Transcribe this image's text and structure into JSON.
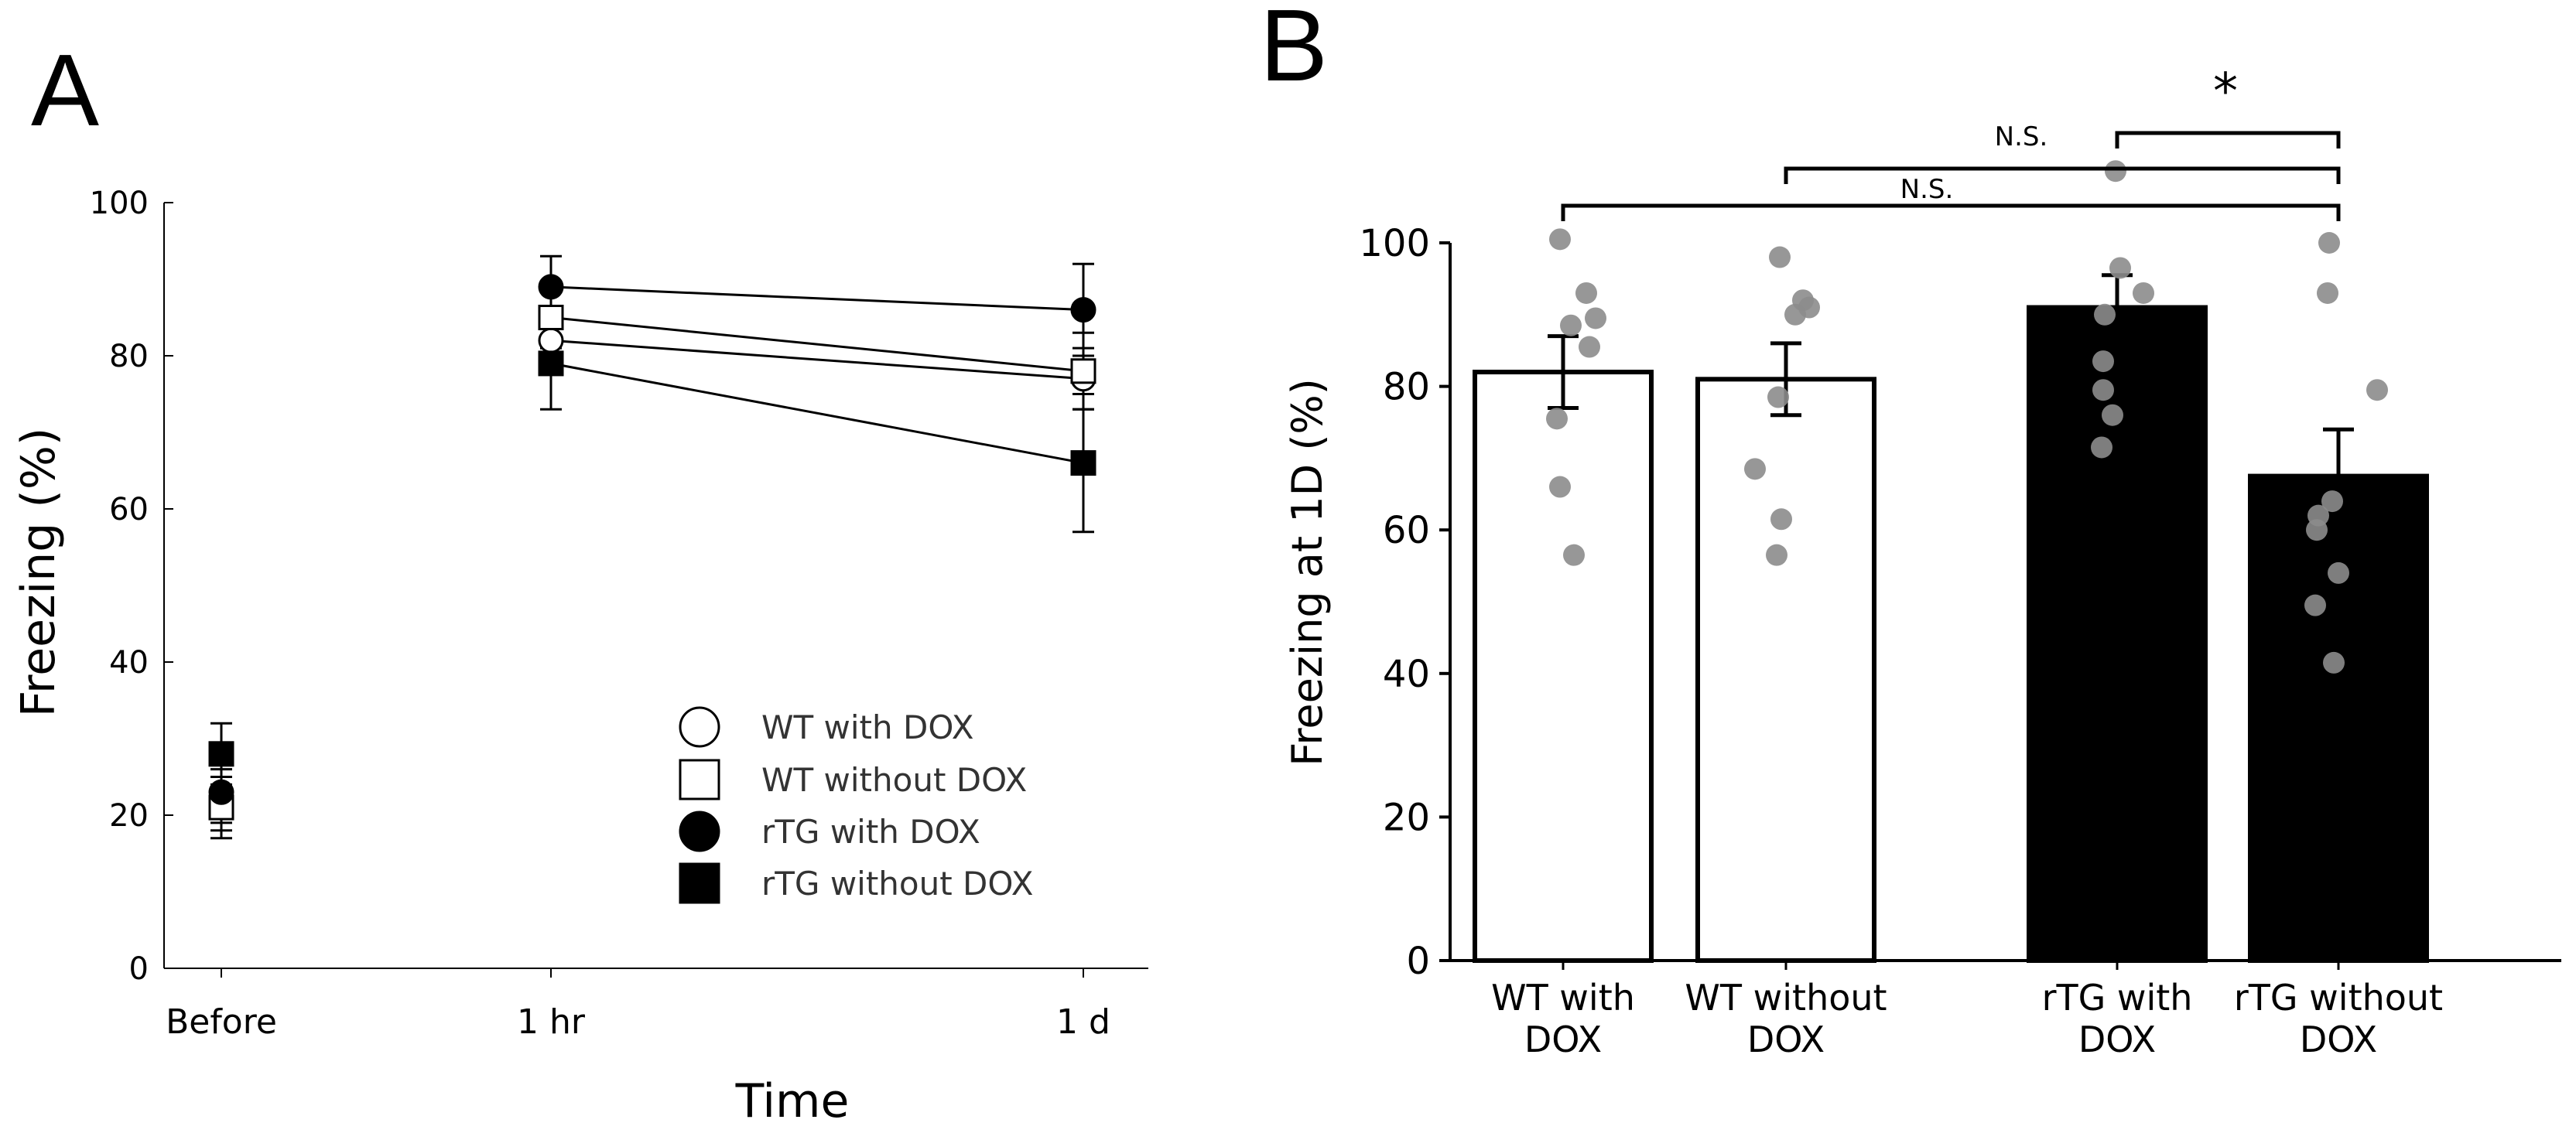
{
  "panels": {
    "a": {
      "letter": "A"
    },
    "b": {
      "letter": "B"
    }
  },
  "chart_data": [
    {
      "panel": "A",
      "type": "scatter",
      "title": "",
      "xlabel": "Time",
      "ylabel": "Freezing (%)",
      "ylim": [
        0,
        100
      ],
      "yticks": [
        0,
        20,
        40,
        60,
        80,
        100
      ],
      "categories": [
        "Before",
        "1 hr",
        "1 d"
      ],
      "legend_position": "bottom-right",
      "series": [
        {
          "name": "WT with DOX",
          "marker": "open-circle",
          "values": [
            22,
            82,
            77
          ],
          "errors": [
            4,
            4,
            4
          ]
        },
        {
          "name": "WT without DOX",
          "marker": "open-square",
          "values": [
            21,
            85,
            78
          ],
          "errors": [
            4,
            4,
            5
          ]
        },
        {
          "name": "rTG with DOX",
          "marker": "filled-circle",
          "values": [
            23,
            89,
            86
          ],
          "errors": [
            4,
            4,
            6
          ]
        },
        {
          "name": "rTG without DOX",
          "marker": "filled-square",
          "values": [
            28,
            79,
            66
          ],
          "errors": [
            4,
            6,
            9
          ]
        }
      ],
      "note": "Lines connect the 1 hr and 1 d points only"
    },
    {
      "panel": "B",
      "type": "bar",
      "title": "",
      "xlabel": "",
      "ylabel": "Freezing at 1D (%)",
      "ylim": [
        0,
        100
      ],
      "yticks": [
        0,
        20,
        40,
        60,
        80,
        100
      ],
      "categories": [
        {
          "line1": "WT with",
          "line2": "DOX"
        },
        {
          "line1": "WT without",
          "line2": "DOX"
        },
        {
          "line1": "rTG with",
          "line2": "DOX"
        },
        {
          "line1": "rTG without",
          "line2": "DOX"
        }
      ],
      "values": [
        82,
        81,
        91,
        67.5
      ],
      "errors": [
        5,
        5,
        4.5,
        6.5
      ],
      "bar_fills": [
        "#ffffff",
        "#ffffff",
        "#000000",
        "#000000"
      ],
      "points": [
        [
          100.5,
          93,
          88.5,
          85.5,
          89.5,
          75.5,
          66,
          56.5
        ],
        [
          98,
          92,
          91,
          90,
          78.5,
          68.5,
          61.5,
          56.5
        ],
        [
          110,
          96.5,
          93,
          90,
          83.5,
          79.5,
          76,
          71.5
        ],
        [
          100,
          93,
          79.5,
          64,
          62,
          60,
          54,
          49.5,
          41.5
        ]
      ],
      "point_color": "#8c8c8c",
      "significance": [
        {
          "from": 0,
          "to": 3,
          "level": 105,
          "label": "N.S."
        },
        {
          "from": 1,
          "to": 3,
          "level": 110,
          "label": "N.S."
        },
        {
          "from": 2,
          "to": 3,
          "level": 115,
          "label": "*"
        }
      ]
    }
  ]
}
